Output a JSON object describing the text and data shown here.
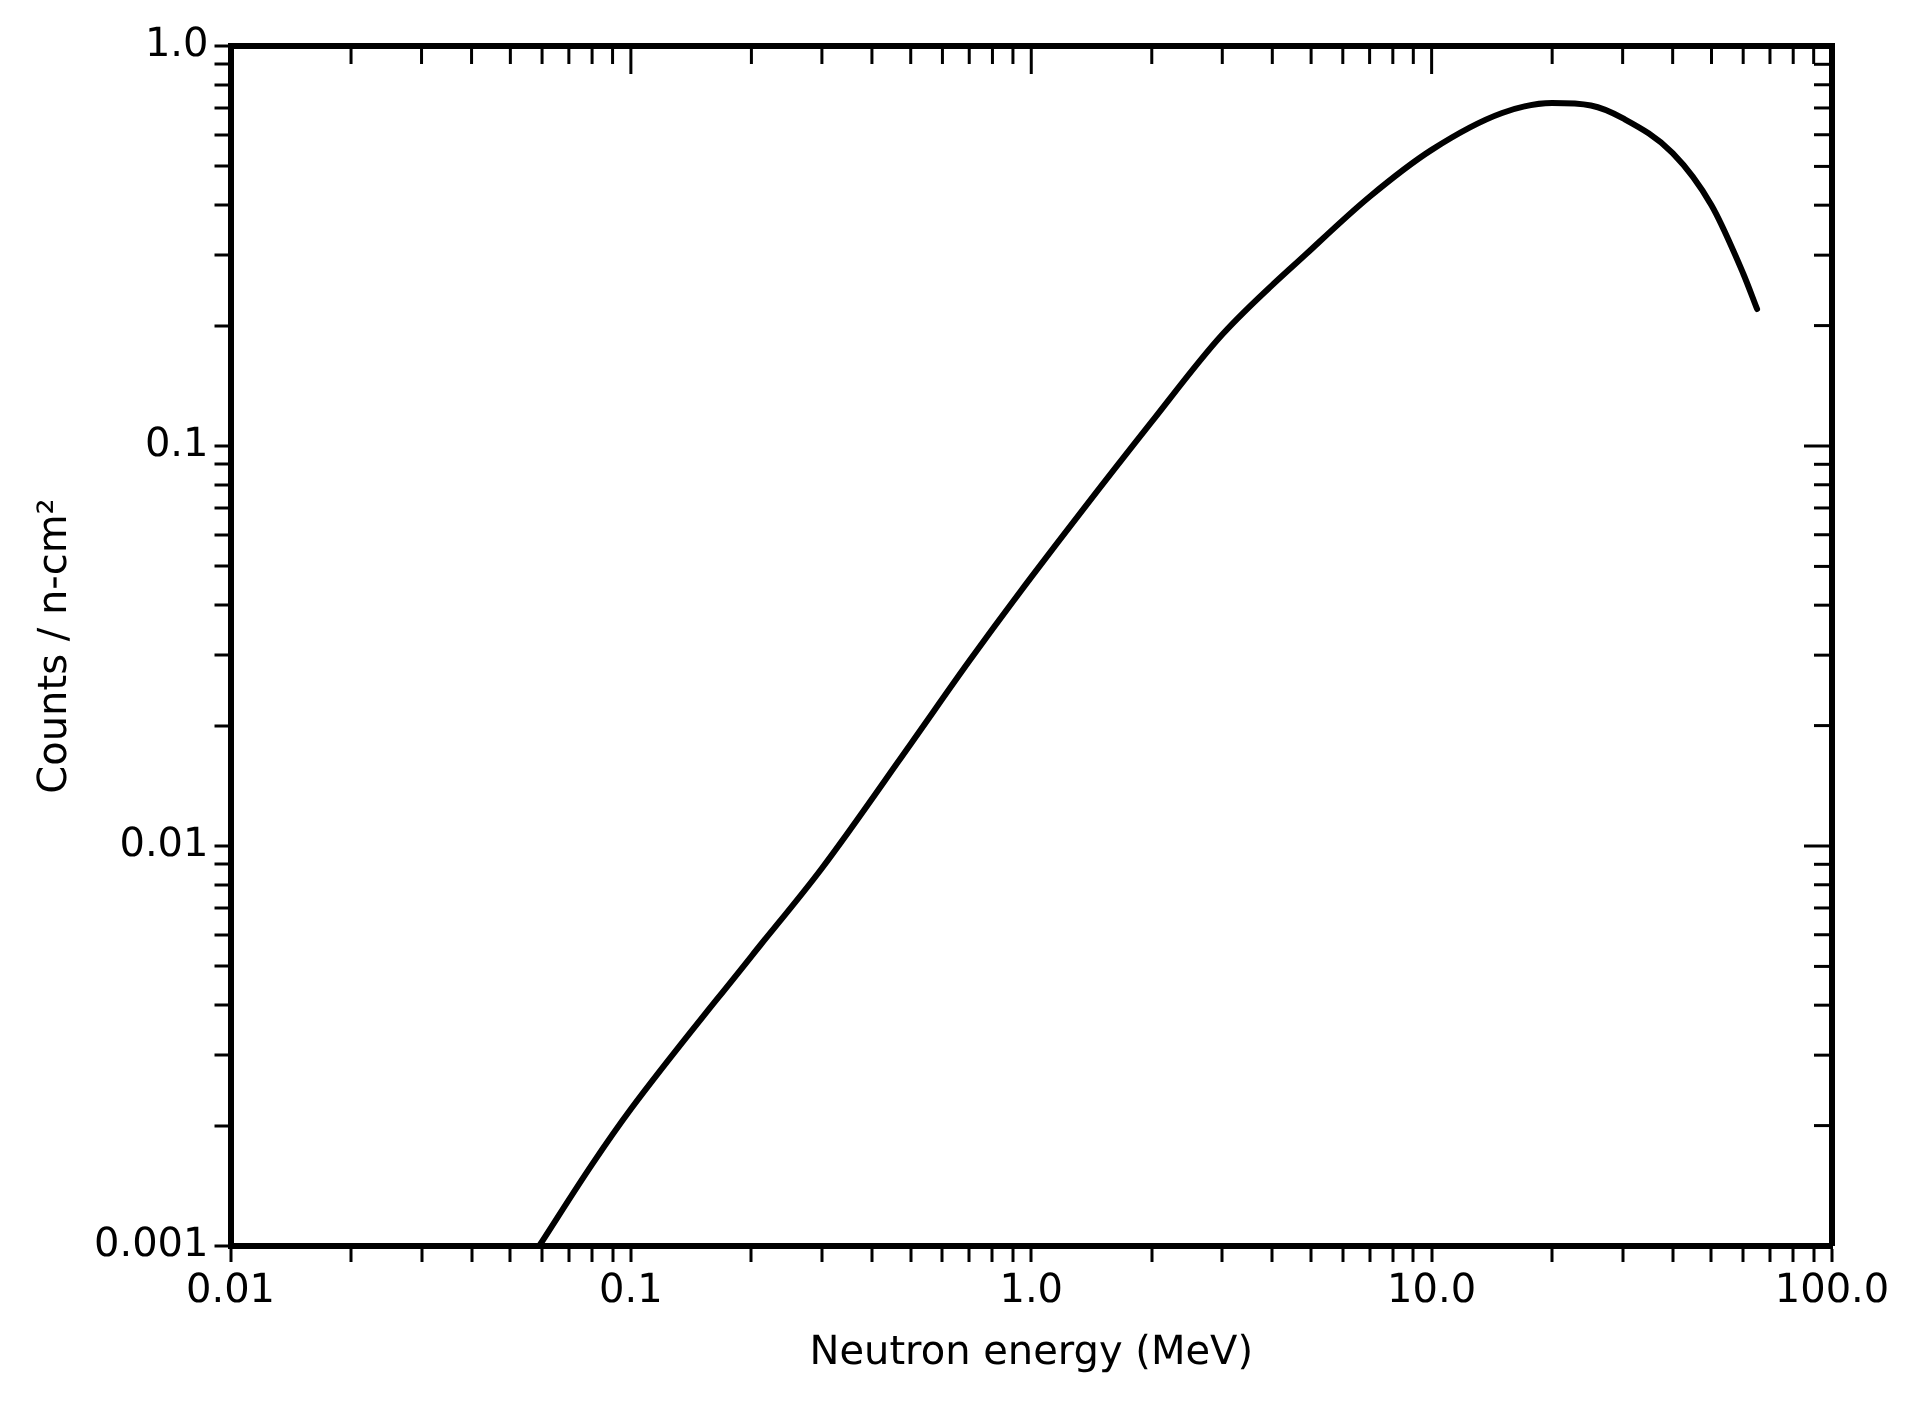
{
  "chart_data": {
    "type": "line",
    "xlabel": "Neutron energy (MeV)",
    "ylabel": "Counts / n-cm²",
    "log": "xy",
    "grid": false,
    "legend": false,
    "marker": "none",
    "line_style": "solid",
    "xlim": [
      0.01,
      100
    ],
    "ylim": [
      0.001,
      1
    ],
    "xticks": [
      {
        "value": 0.01,
        "label": "0.01"
      },
      {
        "value": 0.02,
        "label": null
      },
      {
        "value": 0.03,
        "label": null
      },
      {
        "value": 0.04,
        "label": null
      },
      {
        "value": 0.05,
        "label": null
      },
      {
        "value": 0.06,
        "label": null
      },
      {
        "value": 0.07,
        "label": null
      },
      {
        "value": 0.08,
        "label": null
      },
      {
        "value": 0.09,
        "label": null
      },
      {
        "value": 0.1,
        "label": "0.1"
      },
      {
        "value": 0.2,
        "label": null
      },
      {
        "value": 0.3,
        "label": null
      },
      {
        "value": 0.4,
        "label": null
      },
      {
        "value": 0.5,
        "label": null
      },
      {
        "value": 0.6,
        "label": null
      },
      {
        "value": 0.7,
        "label": null
      },
      {
        "value": 0.8,
        "label": null
      },
      {
        "value": 0.9,
        "label": null
      },
      {
        "value": 1,
        "label": "1.0"
      },
      {
        "value": 2,
        "label": null
      },
      {
        "value": 3,
        "label": null
      },
      {
        "value": 4,
        "label": null
      },
      {
        "value": 5,
        "label": null
      },
      {
        "value": 6,
        "label": null
      },
      {
        "value": 7,
        "label": null
      },
      {
        "value": 8,
        "label": null
      },
      {
        "value": 9,
        "label": null
      },
      {
        "value": 10,
        "label": "10.0"
      },
      {
        "value": 20,
        "label": null
      },
      {
        "value": 30,
        "label": null
      },
      {
        "value": 40,
        "label": null
      },
      {
        "value": 50,
        "label": null
      },
      {
        "value": 60,
        "label": null
      },
      {
        "value": 70,
        "label": null
      },
      {
        "value": 80,
        "label": null
      },
      {
        "value": 90,
        "label": null
      },
      {
        "value": 100,
        "label": "100.0"
      }
    ],
    "yticks": [
      {
        "value": 0.001,
        "label": "0.001"
      },
      {
        "value": 0.002,
        "label": null
      },
      {
        "value": 0.003,
        "label": null
      },
      {
        "value": 0.004,
        "label": null
      },
      {
        "value": 0.005,
        "label": null
      },
      {
        "value": 0.006,
        "label": null
      },
      {
        "value": 0.007,
        "label": null
      },
      {
        "value": 0.008,
        "label": null
      },
      {
        "value": 0.009,
        "label": null
      },
      {
        "value": 0.01,
        "label": "0.01"
      },
      {
        "value": 0.02,
        "label": null
      },
      {
        "value": 0.03,
        "label": null
      },
      {
        "value": 0.04,
        "label": null
      },
      {
        "value": 0.05,
        "label": null
      },
      {
        "value": 0.06,
        "label": null
      },
      {
        "value": 0.07,
        "label": null
      },
      {
        "value": 0.08,
        "label": null
      },
      {
        "value": 0.09,
        "label": null
      },
      {
        "value": 0.1,
        "label": "0.1"
      },
      {
        "value": 0.2,
        "label": null
      },
      {
        "value": 0.3,
        "label": null
      },
      {
        "value": 0.4,
        "label": null
      },
      {
        "value": 0.5,
        "label": null
      },
      {
        "value": 0.6,
        "label": null
      },
      {
        "value": 0.7,
        "label": null
      },
      {
        "value": 0.8,
        "label": null
      },
      {
        "value": 0.9,
        "label": null
      },
      {
        "value": 1,
        "label": "1.0"
      }
    ],
    "series": [
      {
        "color": "#000000",
        "x": [
          0.059,
          0.08,
          0.1,
          0.2,
          0.3,
          0.5,
          0.7,
          1,
          2,
          3,
          5,
          7,
          10,
          15,
          20,
          25,
          30,
          40,
          50,
          60,
          65
        ],
        "values": [
          0.001,
          0.0016,
          0.0022,
          0.0053,
          0.0088,
          0.018,
          0.029,
          0.047,
          0.115,
          0.19,
          0.31,
          0.42,
          0.55,
          0.68,
          0.72,
          0.71,
          0.66,
          0.54,
          0.4,
          0.27,
          0.22
        ]
      }
    ]
  }
}
